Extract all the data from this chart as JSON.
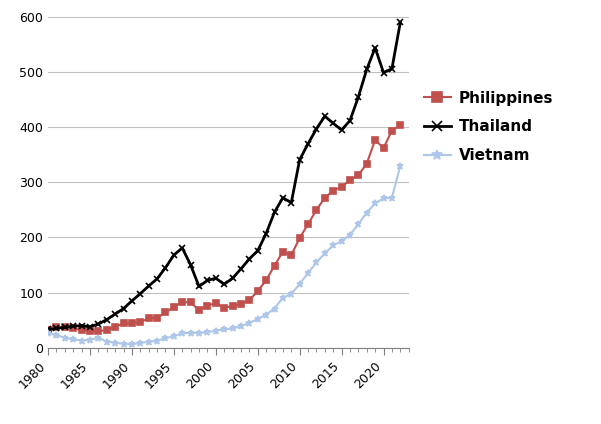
{
  "title": "",
  "xlabel": "",
  "ylabel": "",
  "ylim": [
    0,
    600
  ],
  "yticks": [
    0,
    100,
    200,
    300,
    400,
    500,
    600
  ],
  "xlim": [
    1980,
    2023
  ],
  "xticks": [
    1980,
    1985,
    1990,
    1995,
    2000,
    2005,
    2010,
    2015,
    2020
  ],
  "philippines": {
    "years": [
      1980,
      1981,
      1982,
      1983,
      1984,
      1985,
      1986,
      1987,
      1988,
      1989,
      1990,
      1991,
      1992,
      1993,
      1994,
      1995,
      1996,
      1997,
      1998,
      1999,
      2000,
      2001,
      2002,
      2003,
      2004,
      2005,
      2006,
      2007,
      2008,
      2009,
      2010,
      2011,
      2012,
      2013,
      2014,
      2015,
      2016,
      2017,
      2018,
      2019,
      2020,
      2021,
      2022
    ],
    "values": [
      32,
      37,
      38,
      35,
      32,
      30,
      30,
      32,
      38,
      44,
      44,
      47,
      53,
      54,
      64,
      74,
      83,
      82,
      68,
      76,
      81,
      72,
      76,
      79,
      86,
      103,
      122,
      149,
      174,
      168,
      199,
      224,
      250,
      272,
      285,
      292,
      304,
      313,
      334,
      377,
      362,
      394,
      404
    ],
    "color": "#c0504d",
    "marker": "s",
    "markersize": 5,
    "linewidth": 1.5
  },
  "thailand": {
    "years": [
      1980,
      1981,
      1982,
      1983,
      1984,
      1985,
      1986,
      1987,
      1988,
      1989,
      1990,
      1991,
      1992,
      1993,
      1994,
      1995,
      1996,
      1997,
      1998,
      1999,
      2000,
      2001,
      2002,
      2003,
      2004,
      2005,
      2006,
      2007,
      2008,
      2009,
      2010,
      2011,
      2012,
      2013,
      2014,
      2015,
      2016,
      2017,
      2018,
      2019,
      2020,
      2021,
      2022
    ],
    "values": [
      33,
      35,
      37,
      39,
      40,
      38,
      43,
      51,
      61,
      71,
      85,
      98,
      112,
      125,
      145,
      168,
      181,
      150,
      111,
      122,
      126,
      115,
      126,
      143,
      161,
      176,
      207,
      246,
      272,
      263,
      341,
      370,
      397,
      420,
      407,
      395,
      412,
      455,
      505,
      544,
      499,
      506,
      590
    ],
    "color": "#000000",
    "marker": "x",
    "markersize": 5,
    "linewidth": 2.0
  },
  "vietnam": {
    "years": [
      1980,
      1981,
      1982,
      1983,
      1984,
      1985,
      1986,
      1987,
      1988,
      1989,
      1990,
      1991,
      1992,
      1993,
      1994,
      1995,
      1996,
      1997,
      1998,
      1999,
      2000,
      2001,
      2002,
      2003,
      2004,
      2005,
      2006,
      2007,
      2008,
      2009,
      2010,
      2011,
      2012,
      2013,
      2014,
      2015,
      2016,
      2017,
      2018,
      2019,
      2020,
      2021,
      2022
    ],
    "values": [
      26,
      23,
      18,
      15,
      13,
      14,
      18,
      11,
      9,
      7,
      6,
      9,
      10,
      13,
      17,
      21,
      26,
      27,
      27,
      28,
      31,
      33,
      35,
      39,
      45,
      52,
      60,
      71,
      91,
      97,
      116,
      135,
      155,
      171,
      186,
      193,
      205,
      224,
      245,
      262,
      271,
      272,
      330
    ],
    "color": "#aec6e8",
    "marker": "*",
    "markersize": 5,
    "linewidth": 1.5
  },
  "legend_labels": [
    "Philippines",
    "Thailand",
    "Vietnam"
  ],
  "background_color": "#ffffff",
  "grid_color": "#c0c0c0"
}
